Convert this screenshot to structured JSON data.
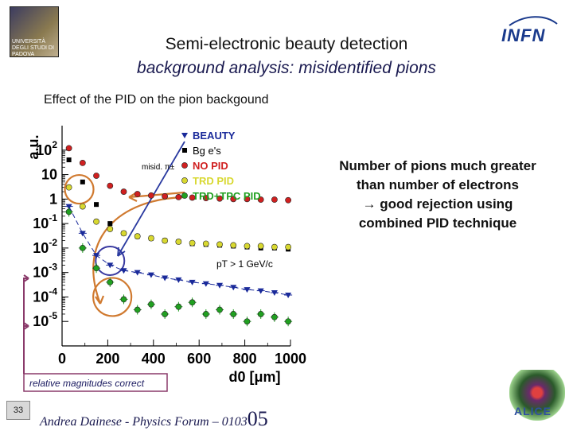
{
  "header": {
    "title": "Semi-electronic beauty detection",
    "subtitle": "background analysis: misidentified pions",
    "section": "Effect of the PID on the pion backgound"
  },
  "logos": {
    "left_text": "UNIVERSITÀ DEGLI STUDI DI PADOVA",
    "right_text": "INFN",
    "bottom_right_text": "ALICE"
  },
  "right_note": {
    "lines": [
      "Number of pions much greater",
      "than number of electrons",
      "→ good rejection using",
      "combined PID technique"
    ]
  },
  "footer": {
    "page_number": "33",
    "author": "Andrea Dainese - Physics Forum – 0103",
    "author_big": "05"
  },
  "colors": {
    "beauty": "#1a2a9a",
    "bges": "#000000",
    "nopid": "#d02020",
    "trd": "#d8d830",
    "trdtpc": "#20a020",
    "circle": "#d07a30",
    "arrow_orange": "#d07a30",
    "arrow_blue": "#2a3aa0",
    "bracket": "#8a3a6a"
  },
  "chart_data": {
    "type": "scatter",
    "ylabel": "a.u.",
    "xlabel": "d0 [μm]",
    "x_ticks": [
      "0",
      "200",
      "400",
      "600",
      "800",
      "1000"
    ],
    "y_ticks": [
      "10^2",
      "10",
      "1",
      "10^-1",
      "10^-2",
      "10^-3",
      "10^-4",
      "10^-5"
    ],
    "y_log": true,
    "xlim": [
      0,
      1000
    ],
    "ylim": [
      1e-06,
      1000
    ],
    "annotation_pt": "pT > 1 GeV/c",
    "annotation_bracket": "relative magnitudes correct",
    "legend_header": "misid. π±",
    "legend": [
      {
        "key": "beauty",
        "label": "BEAUTY",
        "marker": "tri"
      },
      {
        "key": "bges",
        "label": "Bg e's",
        "marker": "sq"
      },
      {
        "key": "nopid",
        "label": "NO PID",
        "marker": "dot"
      },
      {
        "key": "trd",
        "label": "TRD PID",
        "marker": "dot"
      },
      {
        "key": "trdtpc",
        "label": "TRD+TPC PID",
        "marker": "dot"
      }
    ],
    "x": [
      30,
      90,
      150,
      210,
      270,
      330,
      390,
      450,
      510,
      570,
      630,
      690,
      750,
      810,
      870,
      930,
      990
    ],
    "series": [
      {
        "key": "nopid",
        "name": "NO PID",
        "marker": "dot",
        "values": [
          120,
          30,
          9,
          3.5,
          2,
          1.6,
          1.4,
          1.3,
          1.2,
          1.15,
          1.1,
          1.05,
          1.0,
          1.0,
          0.95,
          0.95,
          0.9
        ]
      },
      {
        "key": "bges",
        "name": "Bg e's",
        "marker": "sq",
        "values": [
          40,
          5,
          0.6,
          0.1,
          0.04,
          0.03,
          0.025,
          0.02,
          0.018,
          0.015,
          0.014,
          0.013,
          0.012,
          0.011,
          0.01,
          0.01,
          0.009
        ]
      },
      {
        "key": "trd",
        "name": "TRD PID",
        "marker": "dot",
        "values": [
          3,
          0.5,
          0.12,
          0.06,
          0.04,
          0.03,
          0.025,
          0.02,
          0.018,
          0.016,
          0.015,
          0.014,
          0.013,
          0.012,
          0.012,
          0.011,
          0.011
        ]
      },
      {
        "key": "beauty",
        "name": "BEAUTY",
        "marker": "tri",
        "values": [
          0.5,
          0.04,
          0.005,
          0.002,
          0.0012,
          0.001,
          0.0008,
          0.0006,
          0.0005,
          0.0004,
          0.00035,
          0.0003,
          0.00025,
          0.0002,
          0.00018,
          0.00015,
          0.00012
        ]
      },
      {
        "key": "trdtpc",
        "name": "TRD+TPC PID",
        "marker": "dot",
        "values": [
          0.3,
          0.01,
          0.0015,
          0.0004,
          8e-05,
          3e-05,
          5e-05,
          2e-05,
          4e-05,
          6e-05,
          2e-05,
          3e-05,
          2e-05,
          1e-05,
          2e-05,
          1.5e-05,
          1e-05
        ]
      }
    ]
  }
}
